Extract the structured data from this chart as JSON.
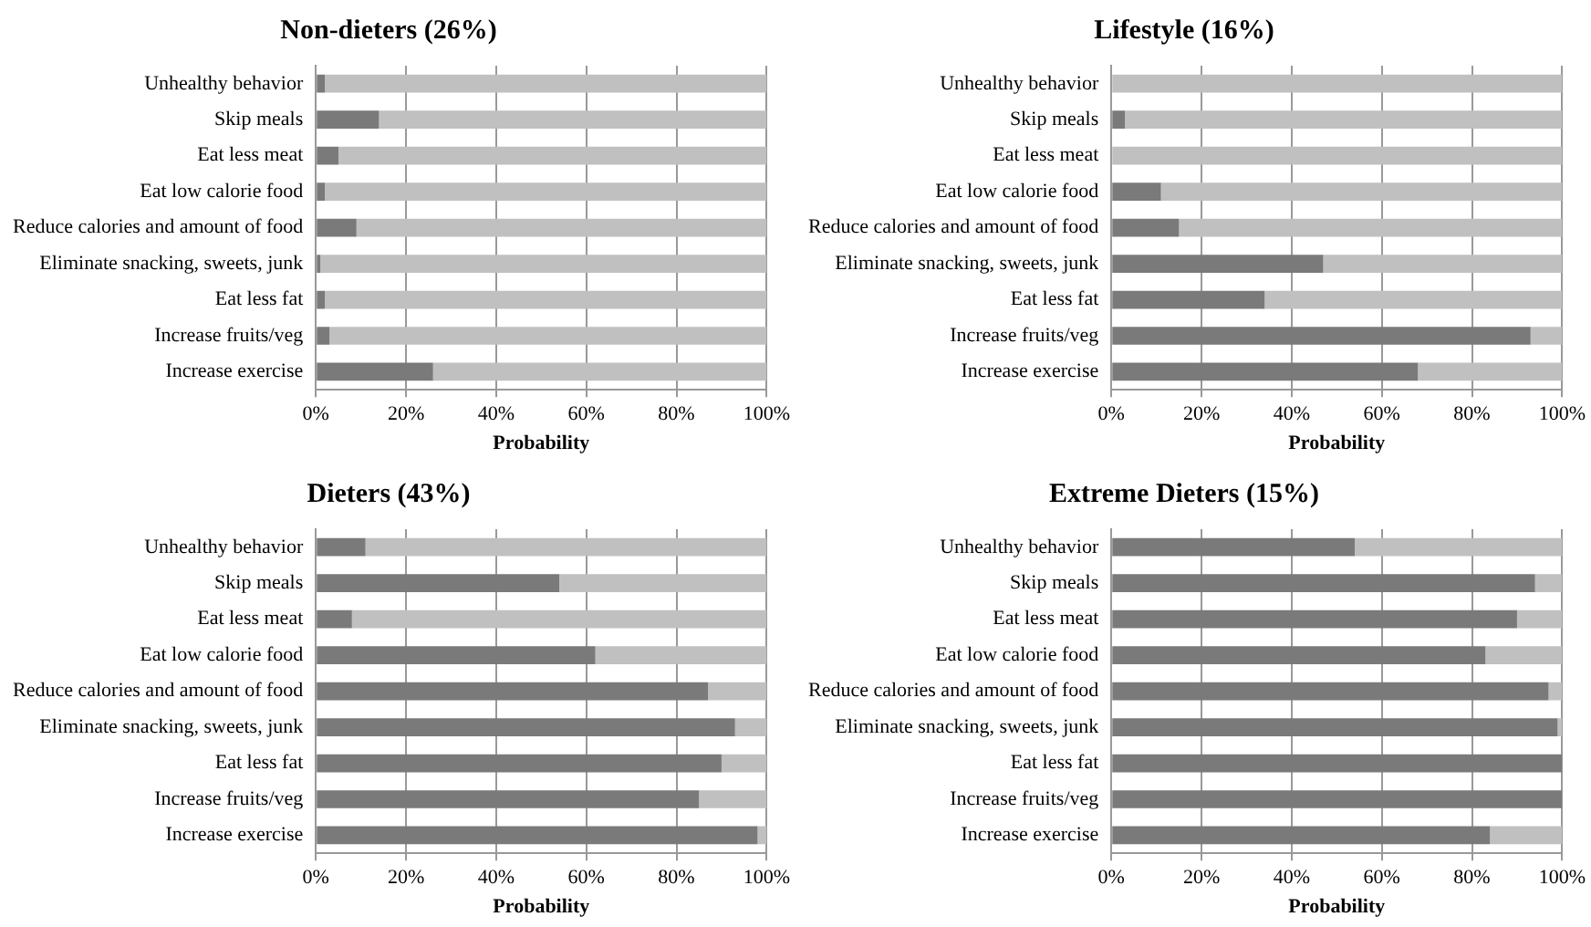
{
  "chart_data": [
    {
      "type": "bar",
      "title": "Non-dieters (26%)",
      "xlabel": "Probability",
      "orientation": "horizontal",
      "stacked": true,
      "grid": "x",
      "xlim": [
        0,
        100
      ],
      "xticks": [
        {
          "value": 0,
          "label": "0%"
        },
        {
          "value": 20,
          "label": "20%"
        },
        {
          "value": 40,
          "label": "40%"
        },
        {
          "value": 60,
          "label": "60%"
        },
        {
          "value": 80,
          "label": "80%"
        },
        {
          "value": 100,
          "label": "100%"
        }
      ],
      "categories": [
        "Unhealthy behavior",
        "Skip meals",
        "Eat less meat",
        "Eat low calorie food",
        "Reduce calories and amount of food",
        "Eliminate snacking, sweets, junk",
        "Eat less fat",
        "Increase fruits/veg",
        "Increase exercise"
      ],
      "series": [
        {
          "color": "#7a7a7a",
          "values": [
            2,
            14,
            5,
            2,
            9,
            1,
            2,
            3,
            26
          ]
        },
        {
          "color": "#c0c0c0",
          "values": [
            98,
            86,
            95,
            98,
            91,
            99,
            98,
            97,
            74
          ]
        }
      ]
    },
    {
      "type": "bar",
      "title": "Lifestyle (16%)",
      "xlabel": "Probability",
      "orientation": "horizontal",
      "stacked": true,
      "grid": "x",
      "xlim": [
        0,
        100
      ],
      "xticks": [
        {
          "value": 0,
          "label": "0%"
        },
        {
          "value": 20,
          "label": "20%"
        },
        {
          "value": 40,
          "label": "40%"
        },
        {
          "value": 60,
          "label": "60%"
        },
        {
          "value": 80,
          "label": "80%"
        },
        {
          "value": 100,
          "label": "100%"
        }
      ],
      "categories": [
        "Unhealthy behavior",
        "Skip meals",
        "Eat less meat",
        "Eat low calorie food",
        "Reduce calories and amount of food",
        "Eliminate snacking, sweets, junk",
        "Eat less fat",
        "Increase fruits/veg",
        "Increase exercise"
      ],
      "series": [
        {
          "color": "#7a7a7a",
          "values": [
            0,
            3,
            0,
            11,
            15,
            47,
            34,
            93,
            68
          ]
        },
        {
          "color": "#c0c0c0",
          "values": [
            100,
            97,
            100,
            89,
            85,
            53,
            66,
            7,
            32
          ]
        }
      ]
    },
    {
      "type": "bar",
      "title": "Dieters (43%)",
      "xlabel": "Probability",
      "orientation": "horizontal",
      "stacked": true,
      "grid": "x",
      "xlim": [
        0,
        100
      ],
      "xticks": [
        {
          "value": 0,
          "label": "0%"
        },
        {
          "value": 20,
          "label": "20%"
        },
        {
          "value": 40,
          "label": "40%"
        },
        {
          "value": 60,
          "label": "60%"
        },
        {
          "value": 80,
          "label": "80%"
        },
        {
          "value": 100,
          "label": "100%"
        }
      ],
      "categories": [
        "Unhealthy behavior",
        "Skip meals",
        "Eat less meat",
        "Eat low calorie food",
        "Reduce calories and amount of food",
        "Eliminate snacking, sweets, junk",
        "Eat less fat",
        "Increase fruits/veg",
        "Increase exercise"
      ],
      "series": [
        {
          "color": "#7a7a7a",
          "values": [
            11,
            54,
            8,
            62,
            87,
            93,
            90,
            85,
            98
          ]
        },
        {
          "color": "#c0c0c0",
          "values": [
            89,
            46,
            92,
            38,
            13,
            7,
            10,
            15,
            2
          ]
        }
      ]
    },
    {
      "type": "bar",
      "title": "Extreme Dieters (15%)",
      "xlabel": "Probability",
      "orientation": "horizontal",
      "stacked": true,
      "grid": "x",
      "xlim": [
        0,
        100
      ],
      "xticks": [
        {
          "value": 0,
          "label": "0%"
        },
        {
          "value": 20,
          "label": "20%"
        },
        {
          "value": 40,
          "label": "40%"
        },
        {
          "value": 60,
          "label": "60%"
        },
        {
          "value": 80,
          "label": "80%"
        },
        {
          "value": 100,
          "label": "100%"
        }
      ],
      "categories": [
        "Unhealthy behavior",
        "Skip meals",
        "Eat less meat",
        "Eat low calorie food",
        "Reduce calories and amount of food",
        "Eliminate snacking, sweets, junk",
        "Eat less fat",
        "Increase fruits/veg",
        "Increase exercise"
      ],
      "series": [
        {
          "color": "#7a7a7a",
          "values": [
            54,
            94,
            90,
            83,
            97,
            99,
            100,
            100,
            84
          ]
        },
        {
          "color": "#c0c0c0",
          "values": [
            46,
            6,
            10,
            17,
            3,
            1,
            0,
            0,
            16
          ]
        }
      ]
    }
  ]
}
